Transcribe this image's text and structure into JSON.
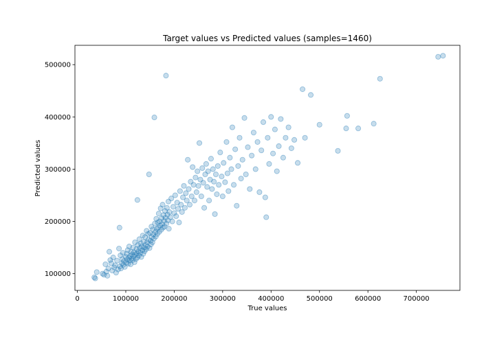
{
  "chart_data": {
    "type": "scatter",
    "title": "Target values vs Predicted values (samples=1460)",
    "xlabel": "True values",
    "ylabel": "Predicted values",
    "xlim": [
      -5000,
      790000
    ],
    "ylim": [
      68000,
      537000
    ],
    "x_ticks": [
      0,
      100000,
      200000,
      300000,
      400000,
      500000,
      600000,
      700000
    ],
    "x_tick_labels": [
      "0",
      "100000",
      "200000",
      "300000",
      "400000",
      "500000",
      "600000",
      "700000"
    ],
    "y_ticks": [
      100000,
      200000,
      300000,
      400000,
      500000
    ],
    "y_tick_labels": [
      "100000",
      "200000",
      "300000",
      "400000",
      "500000"
    ],
    "grid": false,
    "marker_color": "#1f77b4",
    "marker_alpha": 0.25,
    "series": [
      {
        "points": [
          [
            35000,
            93000
          ],
          [
            37000,
            91000
          ],
          [
            40000,
            103000
          ],
          [
            52000,
            100000
          ],
          [
            55000,
            98000
          ],
          [
            58000,
            118000
          ],
          [
            60000,
            104000
          ],
          [
            62000,
            96000
          ],
          [
            64000,
            110000
          ],
          [
            66000,
            142000
          ],
          [
            68000,
            126000
          ],
          [
            70000,
            120000
          ],
          [
            72000,
            106000
          ],
          [
            74000,
            131000
          ],
          [
            76000,
            112000
          ],
          [
            78000,
            116000
          ],
          [
            80000,
            102000
          ],
          [
            82000,
            125000
          ],
          [
            84000,
            108000
          ],
          [
            86000,
            148000
          ],
          [
            87000,
            188000
          ],
          [
            88000,
            114000
          ],
          [
            89000,
            135000
          ],
          [
            90000,
            110000
          ],
          [
            92000,
            120000
          ],
          [
            93000,
            128000
          ],
          [
            94000,
            140000
          ],
          [
            95000,
            117000
          ],
          [
            96000,
            124000
          ],
          [
            98000,
            113000
          ],
          [
            100000,
            132000
          ],
          [
            101000,
            121000
          ],
          [
            102000,
            138000
          ],
          [
            103000,
            127000
          ],
          [
            104000,
            145000
          ],
          [
            105000,
            119000
          ],
          [
            106000,
            130000
          ],
          [
            107000,
            152000
          ],
          [
            108000,
            125000
          ],
          [
            109000,
            134000
          ],
          [
            110000,
            118000
          ],
          [
            111000,
            142000
          ],
          [
            112000,
            129000
          ],
          [
            113000,
            137000
          ],
          [
            114000,
            126000
          ],
          [
            115000,
            150000
          ],
          [
            116000,
            133000
          ],
          [
            117000,
            141000
          ],
          [
            118000,
            122000
          ],
          [
            119000,
            160000
          ],
          [
            120000,
            136000
          ],
          [
            121000,
            128000
          ],
          [
            122000,
            147000
          ],
          [
            123000,
            139000
          ],
          [
            124000,
            131000
          ],
          [
            124000,
            241000
          ],
          [
            125000,
            155000
          ],
          [
            126000,
            143000
          ],
          [
            127000,
            135000
          ],
          [
            128000,
            166000
          ],
          [
            129000,
            149000
          ],
          [
            130000,
            140000
          ],
          [
            131000,
            158000
          ],
          [
            132000,
            132000
          ],
          [
            133000,
            152000
          ],
          [
            134000,
            145000
          ],
          [
            135000,
            173000
          ],
          [
            136000,
            138000
          ],
          [
            137000,
            161000
          ],
          [
            138000,
            150000
          ],
          [
            139000,
            143000
          ],
          [
            140000,
            170000
          ],
          [
            141000,
            155000
          ],
          [
            142000,
            147000
          ],
          [
            143000,
            182000
          ],
          [
            144000,
            160000
          ],
          [
            145000,
            152000
          ],
          [
            146000,
            176000
          ],
          [
            147000,
            165000
          ],
          [
            148000,
            290000
          ],
          [
            149000,
            149000
          ],
          [
            150000,
            178000
          ],
          [
            151000,
            163000
          ],
          [
            152000,
            156000
          ],
          [
            153000,
            190000
          ],
          [
            154000,
            170000
          ],
          [
            155000,
            160000
          ],
          [
            156000,
            185000
          ],
          [
            157000,
            175000
          ],
          [
            158000,
            167000
          ],
          [
            159000,
            399000
          ],
          [
            160000,
            196000
          ],
          [
            161000,
            180000
          ],
          [
            162000,
            171000
          ],
          [
            163000,
            205000
          ],
          [
            164000,
            186000
          ],
          [
            165000,
            176000
          ],
          [
            166000,
            198000
          ],
          [
            167000,
            188000
          ],
          [
            168000,
            215000
          ],
          [
            169000,
            180000
          ],
          [
            170000,
            200000
          ],
          [
            171000,
            192000
          ],
          [
            172000,
            225000
          ],
          [
            173000,
            184000
          ],
          [
            174000,
            206000
          ],
          [
            175000,
            195000
          ],
          [
            176000,
            232000
          ],
          [
            177000,
            188000
          ],
          [
            178000,
            212000
          ],
          [
            179000,
            201000
          ],
          [
            180000,
            190000
          ],
          [
            181000,
            220000
          ],
          [
            182000,
            207000
          ],
          [
            183000,
            479000
          ],
          [
            184000,
            196000
          ],
          [
            185000,
            226000
          ],
          [
            186000,
            213000
          ],
          [
            187000,
            202000
          ],
          [
            188000,
            238000
          ],
          [
            189000,
            186000
          ],
          [
            190000,
            218000
          ],
          [
            192000,
            208000
          ],
          [
            194000,
            244000
          ],
          [
            196000,
            200000
          ],
          [
            198000,
            228000
          ],
          [
            200000,
            216000
          ],
          [
            202000,
            250000
          ],
          [
            204000,
            210000
          ],
          [
            206000,
            236000
          ],
          [
            208000,
            224000
          ],
          [
            210000,
            198000
          ],
          [
            212000,
            258000
          ],
          [
            214000,
            232000
          ],
          [
            216000,
            218000
          ],
          [
            218000,
            246000
          ],
          [
            220000,
            268000
          ],
          [
            222000,
            226000
          ],
          [
            224000,
            254000
          ],
          [
            226000,
            240000
          ],
          [
            228000,
            318000
          ],
          [
            230000,
            262000
          ],
          [
            232000,
            232000
          ],
          [
            234000,
            276000
          ],
          [
            236000,
            248000
          ],
          [
            238000,
            304000
          ],
          [
            240000,
            270000
          ],
          [
            242000,
            240000
          ],
          [
            244000,
            284000
          ],
          [
            246000,
            256000
          ],
          [
            248000,
            296000
          ],
          [
            250000,
            268000
          ],
          [
            252000,
            350000
          ],
          [
            254000,
            280000
          ],
          [
            256000,
            248000
          ],
          [
            258000,
            302000
          ],
          [
            260000,
            274000
          ],
          [
            262000,
            226000
          ],
          [
            264000,
            290000
          ],
          [
            266000,
            310000
          ],
          [
            268000,
            266000
          ],
          [
            270000,
            296000
          ],
          [
            272000,
            240000
          ],
          [
            274000,
            280000
          ],
          [
            276000,
            320000
          ],
          [
            278000,
            262000
          ],
          [
            280000,
            300000
          ],
          [
            282000,
            276000
          ],
          [
            284000,
            214000
          ],
          [
            286000,
            290000
          ],
          [
            288000,
            252000
          ],
          [
            290000,
            306000
          ],
          [
            292000,
            270000
          ],
          [
            295000,
            332000
          ],
          [
            298000,
            286000
          ],
          [
            300000,
            248000
          ],
          [
            302000,
            312000
          ],
          [
            305000,
            275000
          ],
          [
            308000,
            352000
          ],
          [
            310000,
            292000
          ],
          [
            312000,
            258000
          ],
          [
            315000,
            322000
          ],
          [
            318000,
            300000
          ],
          [
            320000,
            380000
          ],
          [
            323000,
            270000
          ],
          [
            326000,
            338000
          ],
          [
            329000,
            230000
          ],
          [
            332000,
            306000
          ],
          [
            335000,
            360000
          ],
          [
            338000,
            282000
          ],
          [
            341000,
            318000
          ],
          [
            345000,
            398000
          ],
          [
            348000,
            290000
          ],
          [
            352000,
            342000
          ],
          [
            356000,
            262000
          ],
          [
            360000,
            326000
          ],
          [
            364000,
            370000
          ],
          [
            368000,
            300000
          ],
          [
            372000,
            352000
          ],
          [
            376000,
            256000
          ],
          [
            380000,
            336000
          ],
          [
            384000,
            390000
          ],
          [
            388000,
            246000
          ],
          [
            390000,
            208000
          ],
          [
            393000,
            360000
          ],
          [
            396000,
            310000
          ],
          [
            400000,
            400000
          ],
          [
            404000,
            330000
          ],
          [
            408000,
            376000
          ],
          [
            412000,
            296000
          ],
          [
            416000,
            344000
          ],
          [
            420000,
            396000
          ],
          [
            425000,
            322000
          ],
          [
            430000,
            360000
          ],
          [
            436000,
            380000
          ],
          [
            442000,
            340000
          ],
          [
            448000,
            356000
          ],
          [
            455000,
            312000
          ],
          [
            465000,
            453000
          ],
          [
            470000,
            360000
          ],
          [
            482000,
            442000
          ],
          [
            500000,
            385000
          ],
          [
            538000,
            335000
          ],
          [
            555000,
            378000
          ],
          [
            557000,
            402000
          ],
          [
            580000,
            378000
          ],
          [
            612000,
            387000
          ],
          [
            625000,
            473000
          ],
          [
            745000,
            515000
          ],
          [
            755000,
            517000
          ]
        ]
      }
    ]
  }
}
